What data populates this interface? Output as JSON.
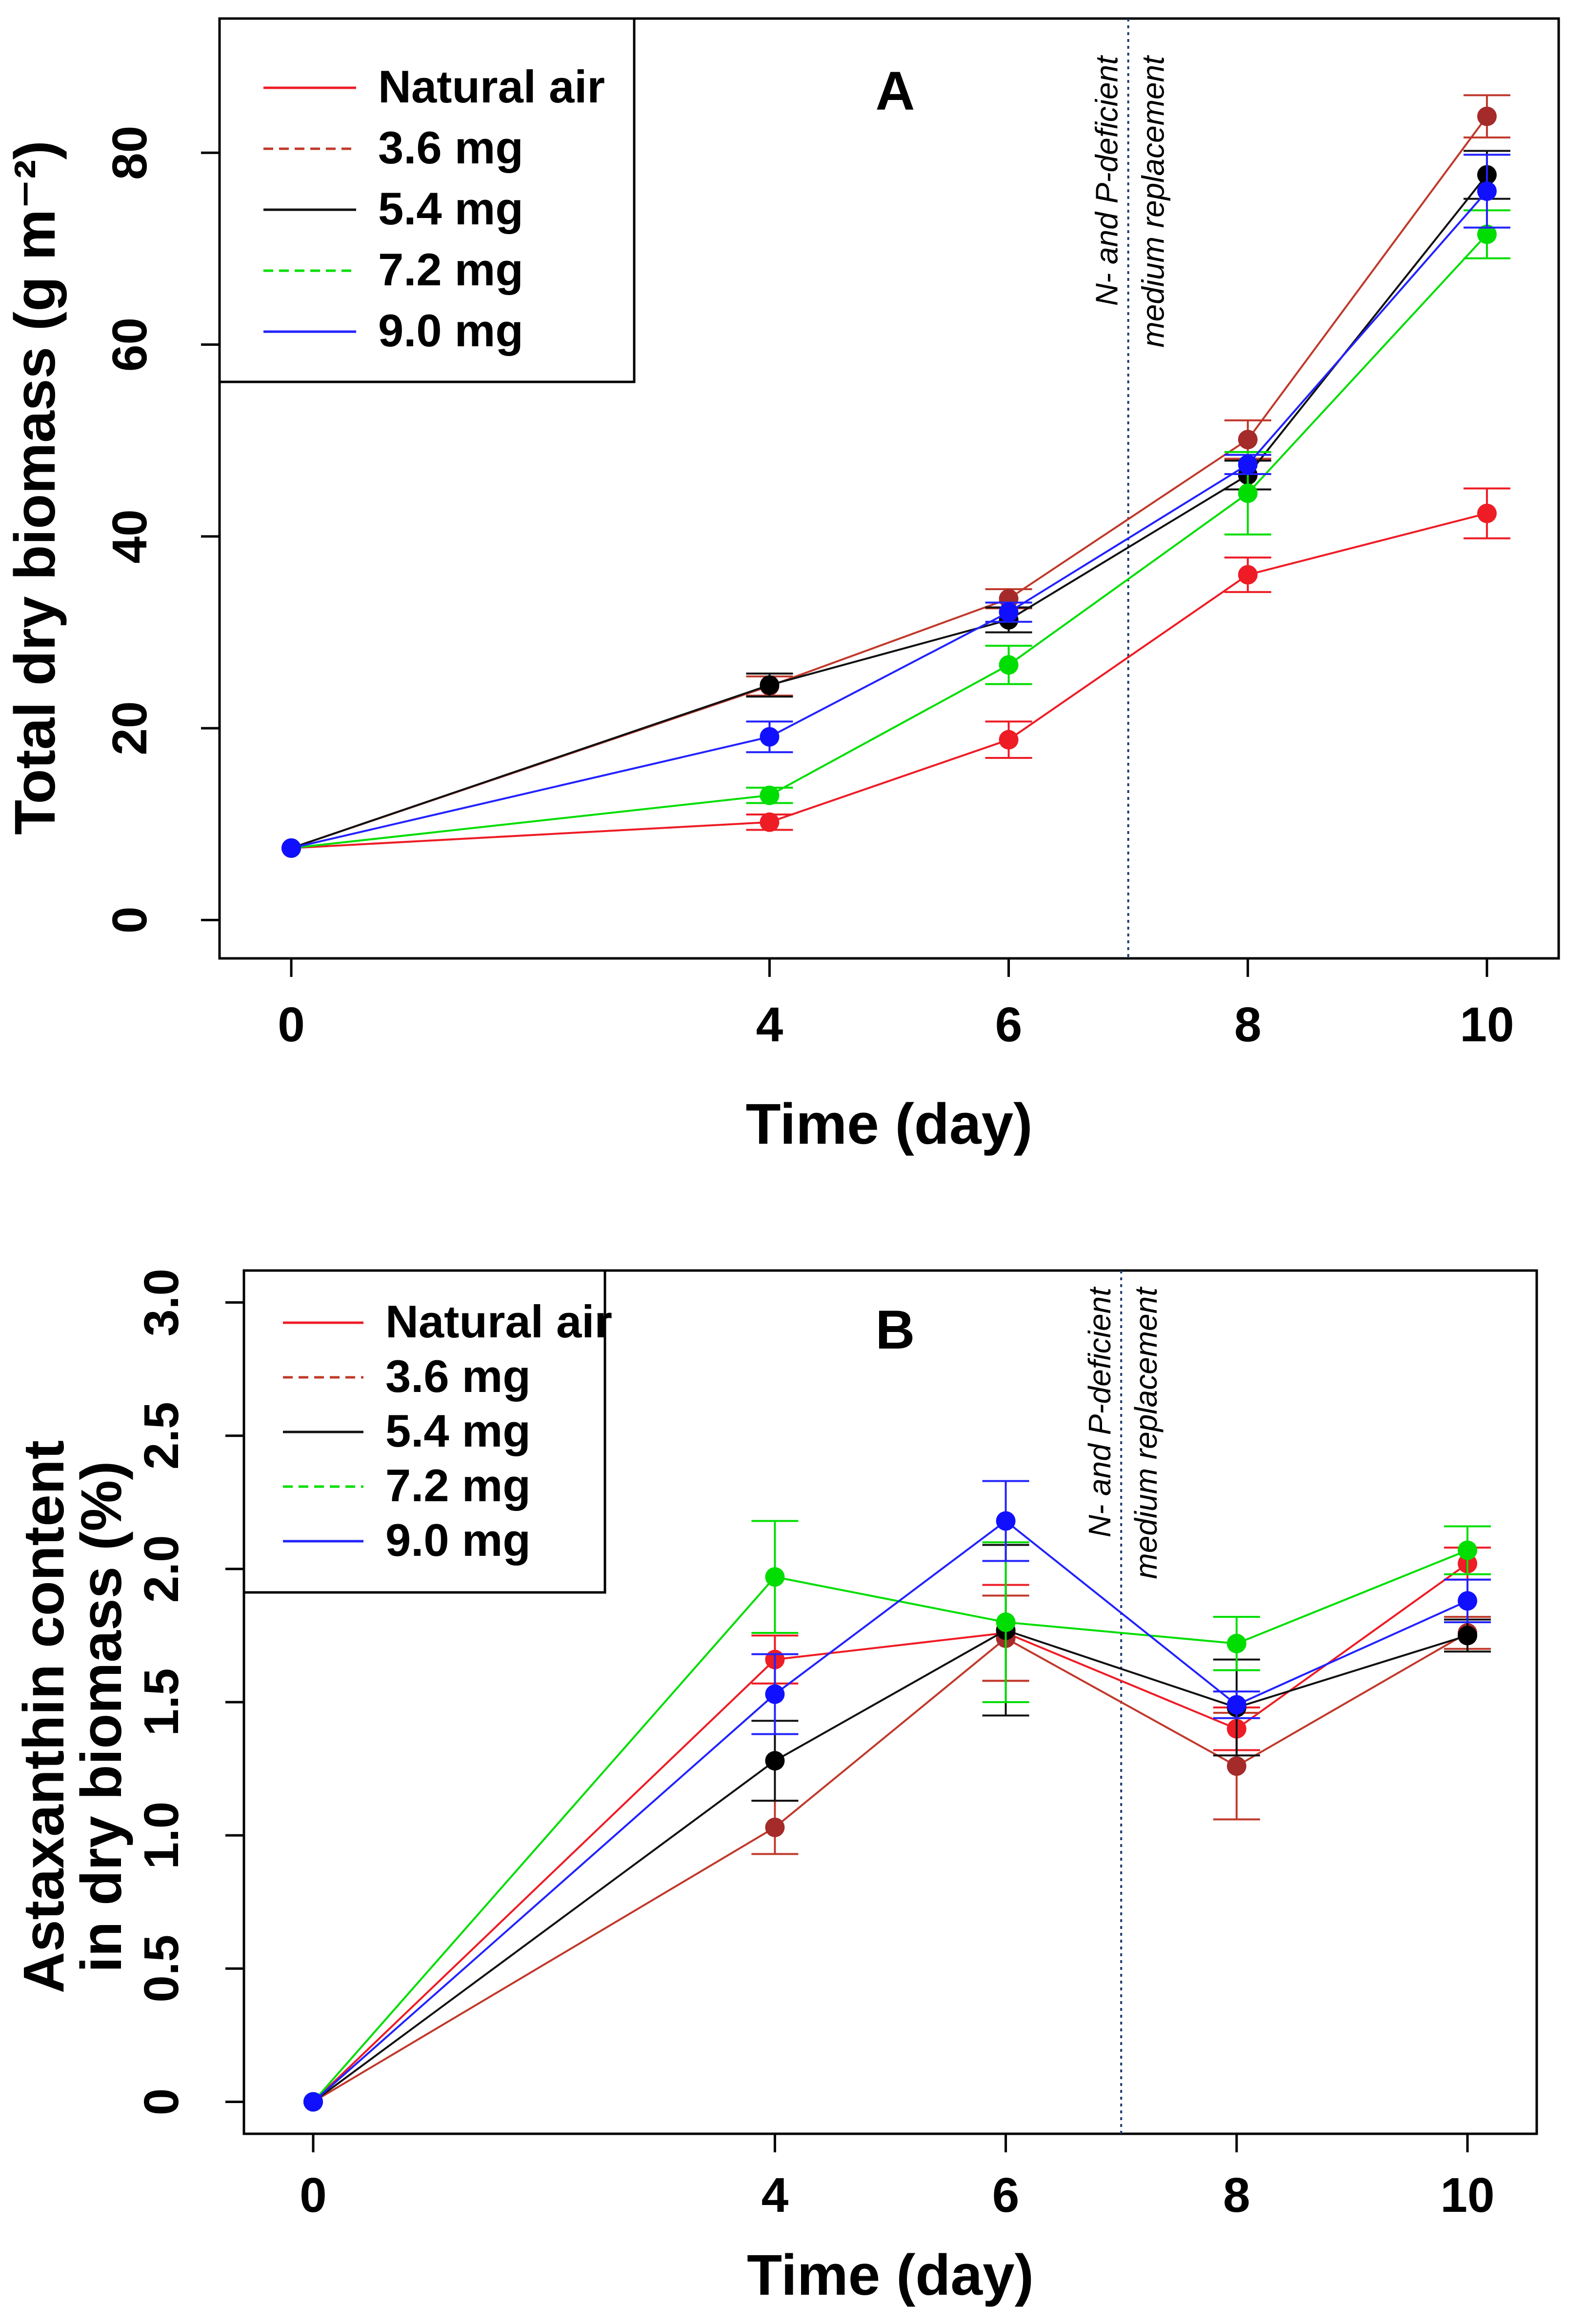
{
  "chart_data": [
    {
      "type": "line",
      "panel": "A",
      "xlabel": "Time (day)",
      "ylabel": "Total dry biomass (g m⁻²)",
      "xticks": [
        0,
        4,
        6,
        8,
        10
      ],
      "yticks": [
        0,
        20,
        40,
        60,
        80
      ],
      "xlim": [
        -0.6,
        10.6
      ],
      "ylim": [
        -4,
        94
      ],
      "legend_position": "top-left",
      "annotation": {
        "x": 7,
        "lines": [
          "N- and P-deficient",
          "medium replacement"
        ]
      },
      "series": [
        {
          "name": "Natural air",
          "color": "#ee1c25",
          "point_color": "#ee1c25",
          "dash": "solid",
          "x": [
            0,
            4,
            6,
            8,
            10
          ],
          "y": [
            7.5,
            10.2,
            18.8,
            36.0,
            42.4
          ],
          "err": [
            0,
            0.8,
            1.9,
            1.8,
            2.6
          ]
        },
        {
          "name": "3.6 mg",
          "color": "#c0392b",
          "point_color": "#a52a2a",
          "dash": "dashed",
          "x": [
            0,
            4,
            6,
            8,
            10
          ],
          "y": [
            7.5,
            24.4,
            33.5,
            50.1,
            83.8
          ],
          "err": [
            0,
            1.0,
            1.0,
            2.0,
            2.2
          ]
        },
        {
          "name": "5.4 mg",
          "color": "#111111",
          "point_color": "#000000",
          "dash": "solid",
          "x": [
            0,
            4,
            6,
            8,
            10
          ],
          "y": [
            7.5,
            24.5,
            31.3,
            46.4,
            77.7
          ],
          "err": [
            0,
            1.2,
            1.3,
            1.5,
            2.5
          ]
        },
        {
          "name": "7.2 mg",
          "color": "#00dd00",
          "point_color": "#00dd00",
          "dash": "dashed",
          "x": [
            0,
            4,
            6,
            8,
            10
          ],
          "y": [
            7.5,
            13.0,
            26.6,
            44.5,
            71.5
          ],
          "err": [
            0,
            0.8,
            2.0,
            4.3,
            2.5
          ]
        },
        {
          "name": "9.0 mg",
          "color": "#2222ff",
          "point_color": "#1010ff",
          "dash": "solid",
          "x": [
            0,
            4,
            6,
            8,
            10
          ],
          "y": [
            7.5,
            19.1,
            32.1,
            47.5,
            76.0
          ],
          "err": [
            0,
            1.6,
            1.0,
            1.0,
            3.8
          ]
        }
      ]
    },
    {
      "type": "line",
      "panel": "B",
      "xlabel": "Time (day)",
      "ylabel": "Astaxanthin content in dry biomass (%)",
      "ylabel_lines": [
        "Astaxanthin content",
        "in dry biomass (%)"
      ],
      "xticks": [
        0,
        4,
        6,
        8,
        10
      ],
      "yticks": [
        "0",
        "0.5",
        "1.0",
        "1.5",
        "2.0",
        "2.5",
        "3.0"
      ],
      "ytick_values": [
        0,
        0.5,
        1.0,
        1.5,
        2.0,
        2.5,
        3.0
      ],
      "xlim": [
        -0.6,
        10.6
      ],
      "ylim": [
        -0.12,
        3.12
      ],
      "legend_position": "top-left",
      "annotation": {
        "x": 7,
        "lines": [
          "N- and P-deficient",
          "medium replacement"
        ]
      },
      "series": [
        {
          "name": "Natural air",
          "color": "#ee1c25",
          "point_color": "#ee1c25",
          "dash": "solid",
          "x": [
            0,
            4,
            6,
            8,
            10
          ],
          "y": [
            0,
            1.66,
            1.76,
            1.4,
            2.02
          ],
          "err": [
            0,
            0.09,
            0.18,
            0.08,
            0.06
          ]
        },
        {
          "name": "3.6 mg",
          "color": "#c0392b",
          "point_color": "#a52a2a",
          "dash": "dashed",
          "x": [
            0,
            4,
            6,
            8,
            10
          ],
          "y": [
            0,
            1.03,
            1.74,
            1.26,
            1.76
          ],
          "err": [
            0,
            0.1,
            0.16,
            0.2,
            0.06
          ]
        },
        {
          "name": "5.4 mg",
          "color": "#111111",
          "point_color": "#000000",
          "dash": "solid",
          "x": [
            0,
            4,
            6,
            8,
            10
          ],
          "y": [
            0,
            1.28,
            1.77,
            1.48,
            1.75
          ],
          "err": [
            0,
            0.15,
            0.32,
            0.18,
            0.06
          ]
        },
        {
          "name": "7.2 mg",
          "color": "#00dd00",
          "point_color": "#00dd00",
          "dash": "dashed",
          "x": [
            0,
            4,
            6,
            8,
            10
          ],
          "y": [
            0,
            1.97,
            1.8,
            1.72,
            2.07
          ],
          "err": [
            0,
            0.21,
            0.3,
            0.1,
            0.09
          ]
        },
        {
          "name": "9.0 mg",
          "color": "#2222ff",
          "point_color": "#1010ff",
          "dash": "solid",
          "x": [
            0,
            4,
            6,
            8,
            10
          ],
          "y": [
            0,
            1.53,
            2.18,
            1.49,
            1.88
          ],
          "err": [
            0,
            0.15,
            0.15,
            0.05,
            0.08
          ]
        }
      ]
    }
  ]
}
